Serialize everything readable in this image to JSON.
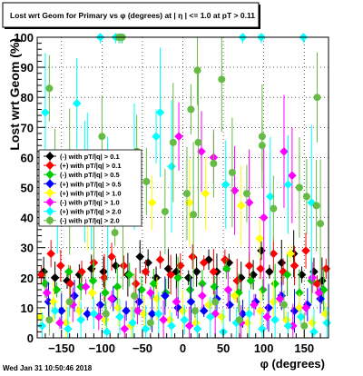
{
  "chart_data": {
    "type": "scatter",
    "title": "Lost wrt Geom for Primary vs φ (degrees) at | η | <= 1.0 at pT > 0.11",
    "xlabel": "φ (degrees)",
    "ylabel": "Lost wrt Geom (%)",
    "xlim": [
      -180,
      180
    ],
    "ylim": [
      0,
      100
    ],
    "x_ticks": [
      -150,
      -100,
      -50,
      0,
      50,
      100,
      150
    ],
    "x_tick_labels": [
      "−150",
      "−100",
      "−50",
      "0",
      "50",
      "100",
      "150"
    ],
    "y_ticks": [
      0,
      10,
      20,
      30,
      40,
      50,
      60,
      70,
      80,
      90,
      100
    ],
    "grid": true,
    "legend_position": "left-middle",
    "series": [
      {
        "name": "(-) with pT/|q| > 0.1",
        "color": "#000000",
        "marker": "diamond",
        "points": [
          [
            -172,
            22
          ],
          [
            -158,
            20
          ],
          [
            -143,
            19
          ],
          [
            -128,
            21
          ],
          [
            -113,
            23
          ],
          [
            -98,
            22
          ],
          [
            -83,
            24
          ],
          [
            -68,
            21
          ],
          [
            -53,
            27
          ],
          [
            -43,
            25
          ],
          [
            -33,
            20
          ],
          [
            -18,
            23
          ],
          [
            -8,
            22
          ],
          [
            7,
            20
          ],
          [
            17,
            22
          ],
          [
            32,
            26
          ],
          [
            42,
            22
          ],
          [
            57,
            25
          ],
          [
            72,
            20
          ],
          [
            87,
            21
          ],
          [
            97,
            29
          ],
          [
            107,
            22
          ],
          [
            122,
            25
          ],
          [
            137,
            28
          ],
          [
            147,
            21
          ],
          [
            162,
            22
          ],
          [
            172,
            19
          ]
        ]
      },
      {
        "name": "(+) with pT/|q| > 0.1",
        "color": "#ff0000",
        "marker": "diamond",
        "points": [
          [
            -175,
            21
          ],
          [
            -163,
            28
          ],
          [
            -151,
            24
          ],
          [
            -139,
            18
          ],
          [
            -125,
            22
          ],
          [
            -110,
            25
          ],
          [
            -97,
            20
          ],
          [
            -88,
            27
          ],
          [
            -73,
            24
          ],
          [
            -58,
            18
          ],
          [
            -46,
            22
          ],
          [
            -28,
            26
          ],
          [
            -15,
            21
          ],
          [
            -3,
            24
          ],
          [
            12,
            27
          ],
          [
            26,
            25
          ],
          [
            38,
            22
          ],
          [
            52,
            26
          ],
          [
            67,
            19
          ],
          [
            82,
            24
          ],
          [
            96,
            23
          ],
          [
            112,
            28
          ],
          [
            124,
            22
          ],
          [
            138,
            24
          ],
          [
            152,
            29
          ],
          [
            166,
            18
          ],
          [
            177,
            23
          ]
        ]
      },
      {
        "name": "(-) with pT/|q| > 0.5",
        "color": "#00cc00",
        "marker": "diamond",
        "points": [
          [
            -170,
            18
          ],
          [
            -156,
            16
          ],
          [
            -141,
            22
          ],
          [
            -126,
            17
          ],
          [
            -111,
            19
          ],
          [
            -96,
            15
          ],
          [
            -81,
            17
          ],
          [
            -66,
            21
          ],
          [
            -51,
            16
          ],
          [
            -36,
            18
          ],
          [
            -21,
            15
          ],
          [
            -6,
            20
          ],
          [
            9,
            16
          ],
          [
            24,
            18
          ],
          [
            39,
            17
          ],
          [
            54,
            23
          ],
          [
            69,
            15
          ],
          [
            84,
            19
          ],
          [
            99,
            16
          ],
          [
            114,
            18
          ],
          [
            129,
            21
          ],
          [
            144,
            15
          ],
          [
            159,
            19
          ],
          [
            174,
            16
          ]
        ]
      },
      {
        "name": "(+) with pT/|q| > 0.5",
        "color": "#0000ff",
        "marker": "diamond",
        "points": [
          [
            -166,
            12
          ],
          [
            -150,
            9
          ],
          [
            -134,
            14
          ],
          [
            -118,
            8
          ],
          [
            -102,
            11
          ],
          [
            -86,
            13
          ],
          [
            -70,
            9
          ],
          [
            -54,
            12
          ],
          [
            -38,
            8
          ],
          [
            -22,
            14
          ],
          [
            -6,
            10
          ],
          [
            10,
            12
          ],
          [
            26,
            9
          ],
          [
            42,
            13
          ],
          [
            58,
            11
          ],
          [
            74,
            8
          ],
          [
            90,
            12
          ],
          [
            106,
            10
          ],
          [
            122,
            14
          ],
          [
            138,
            9
          ],
          [
            154,
            11
          ],
          [
            170,
            13
          ]
        ]
      },
      {
        "name": "(+) with pT/|q| > 1.0",
        "color": "#ffff00",
        "marker": "diamond",
        "points": [
          [
            -176,
            7
          ],
          [
            -160,
            12
          ],
          [
            -144,
            5
          ],
          [
            -128,
            9
          ],
          [
            -112,
            15
          ],
          [
            -96,
            6
          ],
          [
            -80,
            10
          ],
          [
            -64,
            4
          ],
          [
            -48,
            8
          ],
          [
            -32,
            13
          ],
          [
            -16,
            6
          ],
          [
            0,
            9
          ],
          [
            16,
            5
          ],
          [
            32,
            11
          ],
          [
            48,
            7
          ],
          [
            64,
            14
          ],
          [
            80,
            5
          ],
          [
            96,
            9
          ],
          [
            112,
            12
          ],
          [
            128,
            6
          ],
          [
            144,
            10
          ],
          [
            160,
            5
          ],
          [
            176,
            8
          ],
          [
            -118,
            46
          ],
          [
            -38,
            45
          ],
          [
            8,
            45
          ],
          [
            28,
            48
          ],
          [
            72,
            44
          ],
          [
            95,
            33
          ],
          [
            133,
            28
          ]
        ]
      },
      {
        "name": "(-) with pT/|q| > 1.0",
        "color": "#ff00ff",
        "marker": "diamond",
        "points": [
          [
            -168,
            15
          ],
          [
            -152,
            5
          ],
          [
            -136,
            11
          ],
          [
            -120,
            17
          ],
          [
            -104,
            7
          ],
          [
            -88,
            13
          ],
          [
            -72,
            3
          ],
          [
            -56,
            9
          ],
          [
            -40,
            15
          ],
          [
            -24,
            6
          ],
          [
            -8,
            12
          ],
          [
            8,
            4
          ],
          [
            24,
            14
          ],
          [
            40,
            8
          ],
          [
            56,
            16
          ],
          [
            72,
            5
          ],
          [
            88,
            11
          ],
          [
            104,
            7
          ],
          [
            120,
            13
          ],
          [
            136,
            4
          ],
          [
            152,
            10
          ],
          [
            168,
            15
          ],
          [
            -5,
            67
          ],
          [
            23,
            62
          ],
          [
            38,
            60
          ],
          [
            125,
            62
          ],
          [
            135,
            54
          ],
          [
            64,
            49
          ],
          [
            82,
            45
          ],
          [
            100,
            40
          ],
          [
            160,
            20
          ]
        ]
      },
      {
        "name": "(+) with pT/|q| > 2.0",
        "color": "#00ffff",
        "marker": "diamond",
        "points": [
          [
            -174,
            4
          ],
          [
            -158,
            9
          ],
          [
            -142,
            3
          ],
          [
            -126,
            6
          ],
          [
            -110,
            8
          ],
          [
            -94,
            2
          ],
          [
            -78,
            7
          ],
          [
            -62,
            5
          ],
          [
            -46,
            3
          ],
          [
            -30,
            8
          ],
          [
            -14,
            4
          ],
          [
            2,
            6
          ],
          [
            18,
            3
          ],
          [
            34,
            7
          ],
          [
            50,
            2
          ],
          [
            66,
            5
          ],
          [
            82,
            8
          ],
          [
            98,
            3
          ],
          [
            114,
            6
          ],
          [
            130,
            4
          ],
          [
            146,
            7
          ],
          [
            162,
            2
          ],
          [
            178,
            5
          ],
          [
            -170,
            75
          ],
          [
            -131,
            78
          ],
          [
            -102,
            100
          ],
          [
            -83,
            100
          ],
          [
            -77,
            100
          ],
          [
            -28,
            75
          ],
          [
            -14,
            57
          ],
          [
            74,
            100
          ],
          [
            97,
            100
          ],
          [
            149,
            100
          ],
          [
            -155,
            45
          ],
          [
            -118,
            59
          ],
          [
            -93,
            43
          ],
          [
            -60,
            57
          ],
          [
            -33,
            67
          ],
          [
            53,
            51
          ],
          [
            130,
            51
          ],
          [
            159,
            45
          ],
          [
            108,
            47
          ],
          [
            -113,
            40
          ],
          [
            -121,
            52
          ]
        ]
      },
      {
        "name": "(-) with pT/|q| > 2.0",
        "color": "#66bb44",
        "marker": "circle",
        "points": [
          [
            -165,
            83
          ],
          [
            -79,
            100
          ],
          [
            -75,
            100
          ],
          [
            18,
            89
          ],
          [
            48,
            86
          ],
          [
            -100,
            67
          ],
          [
            10,
            76
          ],
          [
            19,
            65
          ],
          [
            98,
            67
          ],
          [
            98,
            64
          ],
          [
            166,
            80
          ],
          [
            38,
            58
          ],
          [
            -12,
            65
          ],
          [
            -57,
            62
          ],
          [
            170,
            38
          ],
          [
            -158,
            56
          ],
          [
            -140,
            52
          ],
          [
            -110,
            42
          ],
          [
            -84,
            35
          ],
          [
            -74,
            39
          ],
          [
            -45,
            52
          ],
          [
            -22,
            42
          ],
          [
            5,
            48
          ],
          [
            13,
            41
          ],
          [
            61,
            55
          ],
          [
            79,
            48
          ],
          [
            112,
            43
          ],
          [
            144,
            50
          ],
          [
            153,
            47
          ],
          [
            165,
            44
          ],
          [
            -140,
            12
          ],
          [
            -95,
            8
          ],
          [
            -40,
            5
          ],
          [
            15,
            9
          ],
          [
            70,
            6
          ],
          [
            125,
            11
          ],
          [
            -165,
            6
          ],
          [
            -60,
            14
          ],
          [
            40,
            12
          ],
          [
            150,
            4
          ]
        ]
      }
    ]
  },
  "footer": {
    "timestamp": "Wed Jan 31 10:50:46 2018"
  }
}
